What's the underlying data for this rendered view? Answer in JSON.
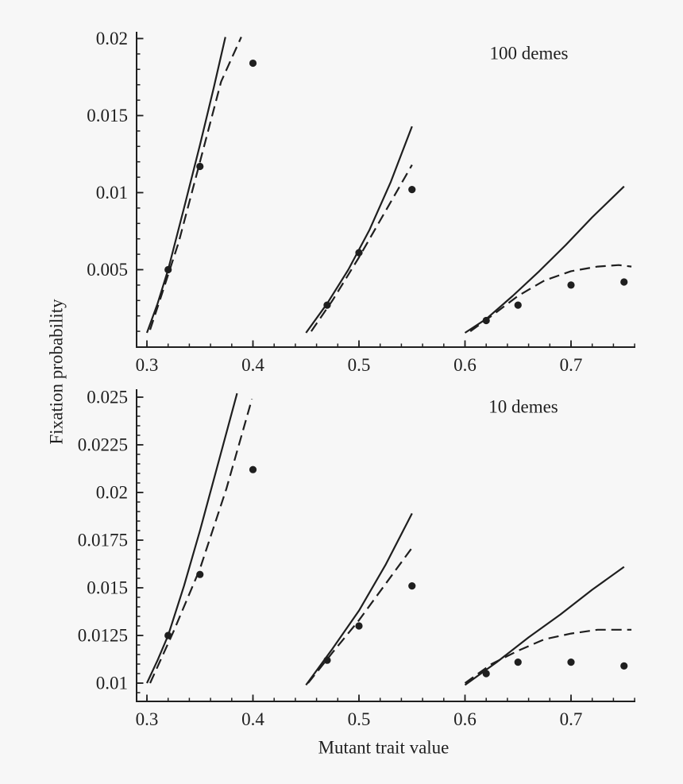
{
  "colors": {
    "background": "#f7f7f7",
    "ink": "#1f1f1f"
  },
  "chart_data": [
    {
      "panel": "top",
      "type": "line",
      "title": "100 demes",
      "ylabel": "Fixation probability",
      "xlim": [
        0.29,
        0.76
      ],
      "ylim": [
        0,
        0.0204
      ],
      "grid": false,
      "legend": "none",
      "x_ticks": {
        "major": [
          0.3,
          0.4,
          0.5,
          0.6,
          0.7
        ],
        "labels": [
          "0.3",
          "0.4",
          "0.5",
          "0.6",
          "0.7"
        ],
        "minor_step": 0.02,
        "minor_range": [
          0.3,
          0.76
        ]
      },
      "y_ticks": {
        "major": [
          0.005,
          0.01,
          0.015,
          0.02
        ],
        "labels": [
          "0.005",
          "0.01",
          "0.015",
          "0.02"
        ],
        "minor_step": 0.001,
        "minor_range": [
          0.001,
          0.02
        ]
      },
      "series": [
        {
          "name": "solid-curve-0.30",
          "style": "solid",
          "points": [
            [
              0.3,
              0.0009
            ],
            [
              0.31,
              0.0028
            ],
            [
              0.32,
              0.005
            ],
            [
              0.335,
              0.009
            ],
            [
              0.35,
              0.0131
            ],
            [
              0.363,
              0.0168
            ],
            [
              0.374,
              0.0201
            ]
          ]
        },
        {
          "name": "dashed-curve-0.30",
          "style": "dashed",
          "points": [
            [
              0.303,
              0.0011
            ],
            [
              0.315,
              0.0036
            ],
            [
              0.33,
              0.0068
            ],
            [
              0.35,
              0.012
            ],
            [
              0.37,
              0.0172
            ],
            [
              0.389,
              0.0201
            ]
          ]
        },
        {
          "name": "solid-curve-0.45",
          "style": "solid",
          "points": [
            [
              0.45,
              0.0009
            ],
            [
              0.47,
              0.0028
            ],
            [
              0.49,
              0.005
            ],
            [
              0.51,
              0.0076
            ],
            [
              0.53,
              0.0107
            ],
            [
              0.55,
              0.0143
            ]
          ]
        },
        {
          "name": "dashed-curve-0.45",
          "style": "dashed",
          "points": [
            [
              0.455,
              0.001
            ],
            [
              0.475,
              0.003
            ],
            [
              0.5,
              0.0058
            ],
            [
              0.525,
              0.0088
            ],
            [
              0.55,
              0.0118
            ]
          ]
        },
        {
          "name": "solid-curve-0.60",
          "style": "solid",
          "points": [
            [
              0.6,
              0.0009
            ],
            [
              0.62,
              0.0018
            ],
            [
              0.645,
              0.0033
            ],
            [
              0.67,
              0.0049
            ],
            [
              0.695,
              0.0066
            ],
            [
              0.72,
              0.0084
            ],
            [
              0.75,
              0.0104
            ]
          ]
        },
        {
          "name": "dashed-curve-0.60",
          "style": "dashed",
          "points": [
            [
              0.605,
              0.001
            ],
            [
              0.625,
              0.002
            ],
            [
              0.65,
              0.0033
            ],
            [
              0.675,
              0.0043
            ],
            [
              0.7,
              0.0049
            ],
            [
              0.725,
              0.0052
            ],
            [
              0.745,
              0.0053
            ],
            [
              0.757,
              0.0052
            ]
          ]
        },
        {
          "name": "simulation-points",
          "style": "scatter",
          "points": [
            [
              0.32,
              0.005
            ],
            [
              0.35,
              0.0117
            ],
            [
              0.4,
              0.0184
            ],
            [
              0.47,
              0.0027
            ],
            [
              0.5,
              0.0061
            ],
            [
              0.55,
              0.0102
            ],
            [
              0.62,
              0.0017
            ],
            [
              0.65,
              0.0027
            ],
            [
              0.7,
              0.004
            ],
            [
              0.75,
              0.0042
            ]
          ]
        }
      ]
    },
    {
      "panel": "bottom",
      "type": "line",
      "title": "10 demes",
      "xlabel": "Mutant trait value",
      "xlim": [
        0.29,
        0.76
      ],
      "ylim": [
        0.009,
        0.0255
      ],
      "grid": false,
      "legend": "none",
      "x_ticks": {
        "major": [
          0.3,
          0.4,
          0.5,
          0.6,
          0.7
        ],
        "labels": [
          "0.3",
          "0.4",
          "0.5",
          "0.6",
          "0.7"
        ],
        "minor_step": 0.02,
        "minor_range": [
          0.3,
          0.76
        ]
      },
      "y_ticks": {
        "major": [
          0.01,
          0.0125,
          0.015,
          0.0175,
          0.02,
          0.0225,
          0.025
        ],
        "labels": [
          "0.01",
          "0.0125",
          "0.015",
          "0.0175",
          "0.02",
          "0.0225",
          "0.025"
        ],
        "minor_step": 0.0005,
        "minor_range": [
          0.0095,
          0.025
        ]
      },
      "series": [
        {
          "name": "solid-curve-0.30",
          "style": "solid",
          "points": [
            [
              0.3,
              0.01
            ],
            [
              0.31,
              0.0112
            ],
            [
              0.32,
              0.0125
            ],
            [
              0.335,
              0.0151
            ],
            [
              0.35,
              0.018
            ],
            [
              0.37,
              0.0221
            ],
            [
              0.385,
              0.0252
            ]
          ]
        },
        {
          "name": "dashed-curve-0.30",
          "style": "dashed",
          "points": [
            [
              0.303,
              0.01
            ],
            [
              0.325,
              0.0127
            ],
            [
              0.35,
              0.016
            ],
            [
              0.375,
              0.0202
            ],
            [
              0.399,
              0.0249
            ]
          ]
        },
        {
          "name": "solid-curve-0.45",
          "style": "solid",
          "points": [
            [
              0.45,
              0.0099
            ],
            [
              0.475,
              0.0118
            ],
            [
              0.5,
              0.0138
            ],
            [
              0.525,
              0.0162
            ],
            [
              0.55,
              0.0189
            ]
          ]
        },
        {
          "name": "dashed-curve-0.45",
          "style": "dashed",
          "points": [
            [
              0.452,
              0.01
            ],
            [
              0.475,
              0.0116
            ],
            [
              0.5,
              0.0133
            ],
            [
              0.525,
              0.0152
            ],
            [
              0.55,
              0.0171
            ]
          ]
        },
        {
          "name": "solid-curve-0.60",
          "style": "solid",
          "points": [
            [
              0.6,
              0.0099
            ],
            [
              0.63,
              0.0111
            ],
            [
              0.66,
              0.0124
            ],
            [
              0.69,
              0.0136
            ],
            [
              0.72,
              0.0149
            ],
            [
              0.75,
              0.0161
            ]
          ]
        },
        {
          "name": "dashed-curve-0.60",
          "style": "dashed",
          "points": [
            [
              0.6,
              0.01
            ],
            [
              0.625,
              0.011
            ],
            [
              0.65,
              0.0117
            ],
            [
              0.675,
              0.0123
            ],
            [
              0.7,
              0.0126
            ],
            [
              0.725,
              0.0128
            ],
            [
              0.757,
              0.0128
            ]
          ]
        },
        {
          "name": "simulation-points",
          "style": "scatter",
          "points": [
            [
              0.32,
              0.0125
            ],
            [
              0.35,
              0.0157
            ],
            [
              0.4,
              0.0212
            ],
            [
              0.47,
              0.0112
            ],
            [
              0.5,
              0.013
            ],
            [
              0.55,
              0.0151
            ],
            [
              0.62,
              0.0105
            ],
            [
              0.65,
              0.0111
            ],
            [
              0.7,
              0.0111
            ],
            [
              0.75,
              0.0109
            ]
          ]
        }
      ]
    }
  ]
}
